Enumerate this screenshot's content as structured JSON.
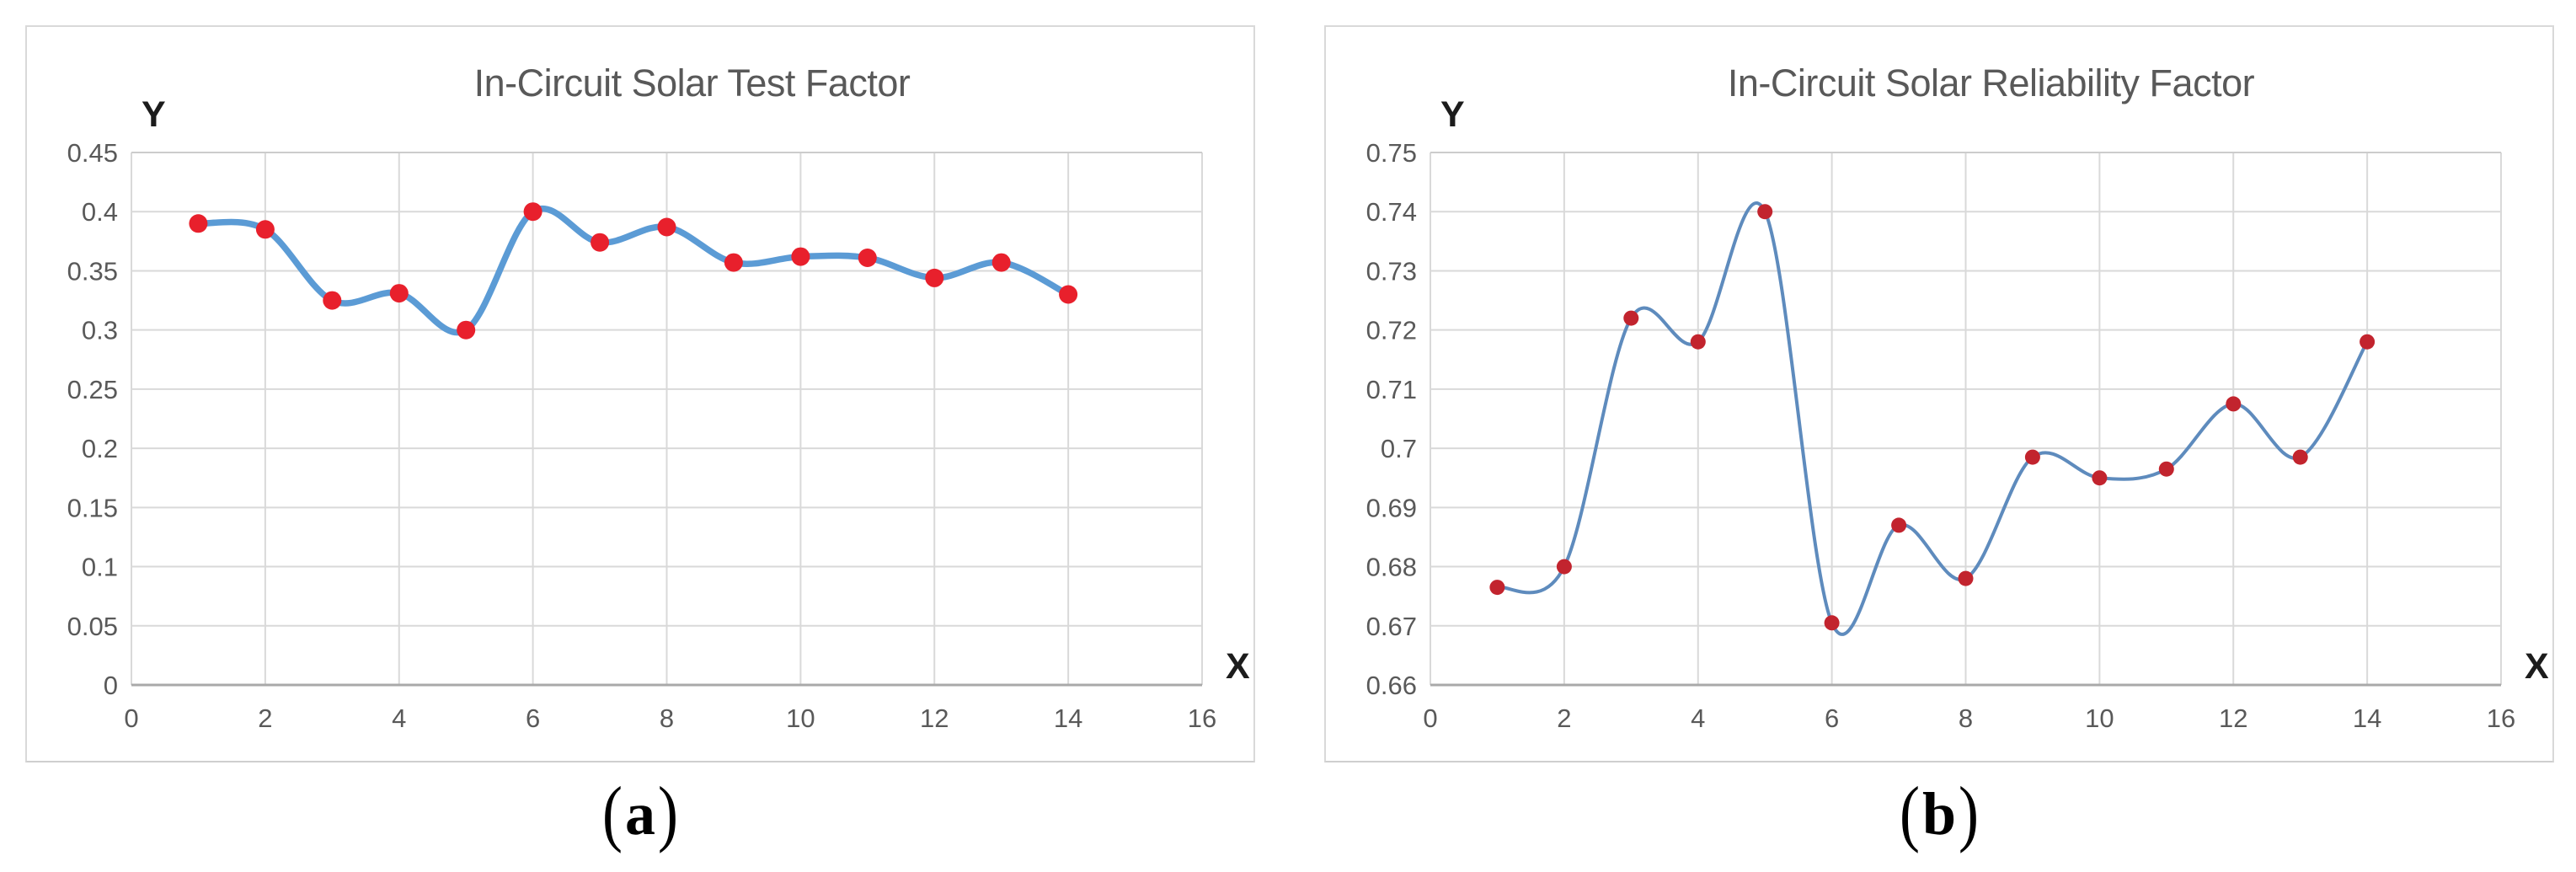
{
  "figure": {
    "background": "#ffffff",
    "panels": [
      {
        "id": "a",
        "caption": {
          "open": "(",
          "letter": "a",
          "close": ")"
        }
      },
      {
        "id": "b",
        "caption": {
          "open": "(",
          "letter": "b",
          "close": ")"
        }
      }
    ]
  },
  "style": {
    "grid_color": "#d9d9d9",
    "top_grid_color": "#cccccc",
    "axis_color": "#a9a9a9",
    "tick_color": "#595959",
    "title_color": "#595959",
    "axis_letter_color": "#1c1c1c",
    "caption_color": "#000000"
  },
  "chart_data": [
    {
      "id": "a",
      "type": "line",
      "title": "In-Circuit Solar Test Factor",
      "xlabel": "X",
      "ylabel": "Y",
      "x": [
        1,
        2,
        3,
        4,
        5,
        6,
        7,
        8,
        9,
        10,
        11,
        12,
        13,
        14
      ],
      "values": [
        0.39,
        0.385,
        0.325,
        0.331,
        0.3,
        0.4,
        0.374,
        0.387,
        0.357,
        0.362,
        0.361,
        0.344,
        0.357,
        0.33
      ],
      "xlim": [
        0,
        16
      ],
      "ylim": [
        0,
        0.45
      ],
      "x_ticks": [
        "0",
        "2",
        "4",
        "6",
        "8",
        "10",
        "12",
        "14",
        "16"
      ],
      "y_ticks": [
        "0",
        "0.05",
        "0.1",
        "0.15",
        "0.2",
        "0.25",
        "0.3",
        "0.35",
        "0.4",
        "0.45"
      ],
      "grid": true,
      "smooth": true,
      "legend": "none",
      "line_color": "#5b9bd5",
      "marker_color": "#e8202c",
      "line_width": 7.5,
      "marker_radius": 11
    },
    {
      "id": "b",
      "type": "line",
      "title": "In-Circuit Solar Reliability Factor",
      "xlabel": "X",
      "ylabel": "Y",
      "x": [
        1,
        2,
        3,
        4,
        5,
        6,
        7,
        8,
        9,
        10,
        11,
        12,
        13,
        14
      ],
      "values": [
        0.6765,
        0.68,
        0.722,
        0.718,
        0.74,
        0.6705,
        0.687,
        0.678,
        0.6985,
        0.695,
        0.6965,
        0.7075,
        0.6985,
        0.718
      ],
      "xlim": [
        0,
        16
      ],
      "ylim": [
        0.66,
        0.75
      ],
      "x_ticks": [
        "0",
        "2",
        "4",
        "6",
        "8",
        "10",
        "12",
        "14",
        "16"
      ],
      "y_ticks": [
        "0.66",
        "0.67",
        "0.68",
        "0.69",
        "0.7",
        "0.71",
        "0.72",
        "0.73",
        "0.74",
        "0.75"
      ],
      "grid": true,
      "smooth": true,
      "legend": "none",
      "line_color": "#5e8bbd",
      "marker_color": "#c2242e",
      "line_width": 4,
      "marker_radius": 9
    }
  ]
}
